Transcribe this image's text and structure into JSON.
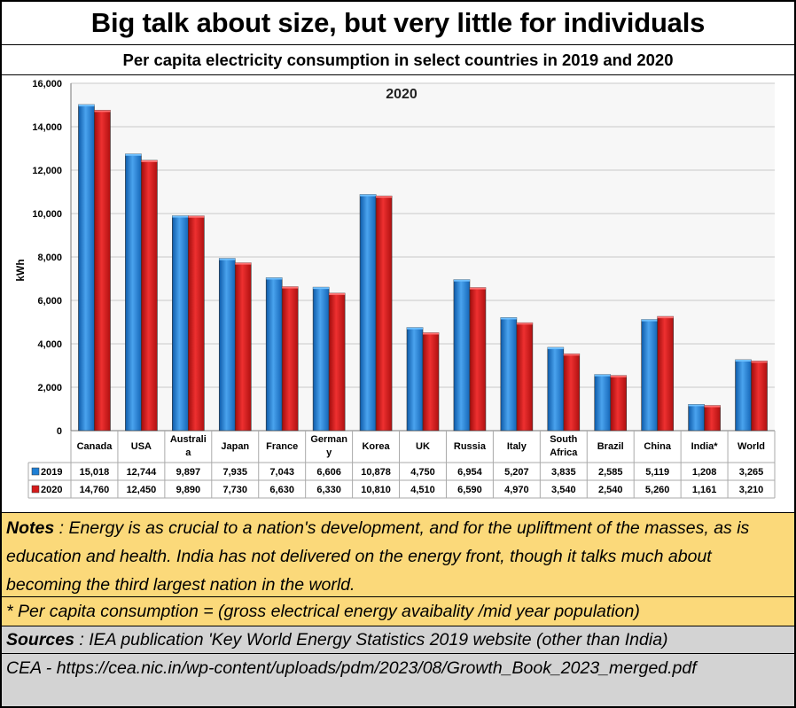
{
  "header": {
    "title": "Big talk about size, but very little for individuals",
    "subtitle": "Per capita electricity consumption in select countries in 2019 and 2020"
  },
  "chart_data": {
    "type": "bar",
    "title": "2020",
    "ylabel": "kWh",
    "xlabel": "",
    "ylim": [
      0,
      16000
    ],
    "yticks": [
      0,
      2000,
      4000,
      6000,
      8000,
      10000,
      12000,
      14000,
      16000
    ],
    "ytick_labels": [
      "0",
      "2,000",
      "4,000",
      "6,000",
      "8,000",
      "10,000",
      "12,000",
      "14,000",
      "16,000"
    ],
    "grid": true,
    "categories": [
      "Canada",
      "USA",
      "Australia",
      "Japan",
      "France",
      "Germany",
      "Korea",
      "UK",
      "Russia",
      "Italy",
      "South Africa",
      "Brazil",
      "China",
      "India*",
      "World"
    ],
    "category_labels": [
      [
        "Canada"
      ],
      [
        "USA"
      ],
      [
        "Australi",
        "a"
      ],
      [
        "Japan"
      ],
      [
        "France"
      ],
      [
        "German",
        "y"
      ],
      [
        "Korea"
      ],
      [
        "UK"
      ],
      [
        "Russia"
      ],
      [
        "Italy"
      ],
      [
        "South",
        "Africa"
      ],
      [
        "Brazil"
      ],
      [
        "China"
      ],
      [
        "India*"
      ],
      [
        "World"
      ]
    ],
    "series": [
      {
        "name": "2019",
        "color": "#1f7fd4",
        "values": [
          15018,
          12744,
          9897,
          7935,
          7043,
          6606,
          10878,
          4750,
          6954,
          5207,
          3835,
          2585,
          5119,
          1208,
          3265
        ],
        "labels": [
          "15,018",
          "12,744",
          "9,897",
          "7,935",
          "7,043",
          "6,606",
          "10,878",
          "4,750",
          "6,954",
          "5,207",
          "3,835",
          "2,585",
          "5,119",
          "1,208",
          "3,265"
        ]
      },
      {
        "name": "2020",
        "color": "#d41a1a",
        "values": [
          14760,
          12450,
          9890,
          7730,
          6630,
          6330,
          10810,
          4510,
          6590,
          4970,
          3540,
          2540,
          5260,
          1161,
          3210
        ],
        "labels": [
          "14,760",
          "12,450",
          "9,890",
          "7,730",
          "6,630",
          "6,330",
          "10,810",
          "4,510",
          "6,590",
          "4,970",
          "3,540",
          "2,540",
          "5,260",
          "1,161",
          "3,210"
        ]
      }
    ]
  },
  "notes": {
    "lead": "Notes",
    "text": " : Energy is as crucial to a nation's development, and for the upliftment of the masses, as is education and health.  India has not delivered on the energy front, though it talks much about becoming the third largest nation in the world."
  },
  "footnote": "* Per capita consumption  = (gross electrical energy avaibality /mid year population)",
  "sources": {
    "lead": "Sources",
    "text": " : IEA publication 'Key World Energy Statistics 2019 website (other than India)",
    "cea": "CEA - https://cea.nic.in/wp-content/uploads/pdm/2023/08/Growth_Book_2023_merged.pdf"
  }
}
